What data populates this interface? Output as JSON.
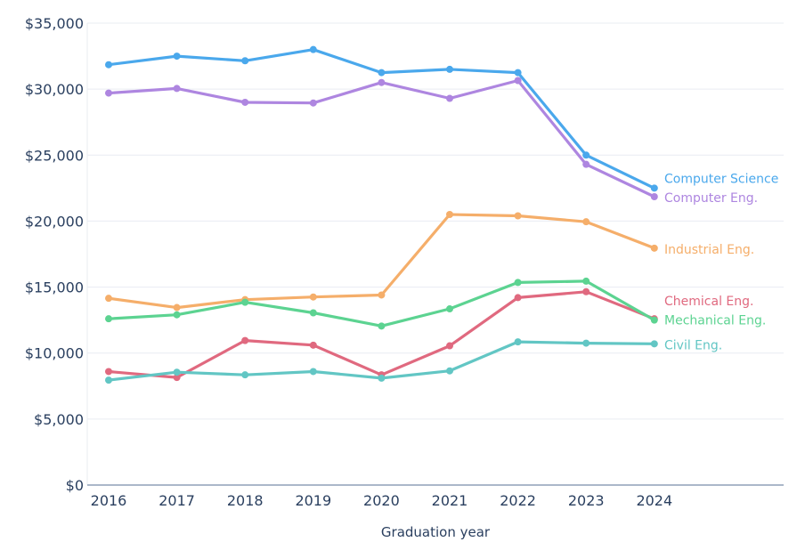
{
  "chart_data": {
    "type": "line",
    "title": "",
    "xlabel": "Graduation year",
    "ylabel": "",
    "x": [
      "2016",
      "2017",
      "2018",
      "2019",
      "2020",
      "2021",
      "2022",
      "2023",
      "2024"
    ],
    "ylim": [
      0,
      35000
    ],
    "yticks": [
      0,
      5000,
      10000,
      15000,
      20000,
      25000,
      30000,
      35000
    ],
    "ytick_labels": [
      "$0",
      "$5,000",
      "$10,000",
      "$15,000",
      "$20,000",
      "$25,000",
      "$30,000",
      "$35,000"
    ],
    "grid": true,
    "legend": "labels at line ends (right)",
    "series": [
      {
        "name": "Computer Science",
        "color": "#4aa8ec",
        "values": [
          31850,
          32500,
          32150,
          33000,
          31250,
          31500,
          31250,
          25000,
          22500
        ]
      },
      {
        "name": "Computer Eng.",
        "color": "#ae86e0",
        "values": [
          29700,
          30050,
          29000,
          28950,
          30500,
          29300,
          30650,
          24300,
          21850
        ]
      },
      {
        "name": "Industrial Eng.",
        "color": "#f5ae6a",
        "values": [
          14150,
          13450,
          14050,
          14250,
          14400,
          20500,
          20400,
          19950,
          17950
        ]
      },
      {
        "name": "Chemical Eng.",
        "color": "#e0697f",
        "values": [
          8600,
          8150,
          10950,
          10600,
          8350,
          10550,
          14200,
          14650,
          12600
        ]
      },
      {
        "name": "Mechanical Eng.",
        "color": "#5cd391",
        "values": [
          12600,
          12900,
          13850,
          13050,
          12050,
          13350,
          15350,
          15450,
          12500
        ]
      },
      {
        "name": "Civil Eng.",
        "color": "#62c6c4",
        "values": [
          7950,
          8550,
          8350,
          8600,
          8100,
          8650,
          10850,
          10750,
          10700
        ]
      }
    ]
  }
}
